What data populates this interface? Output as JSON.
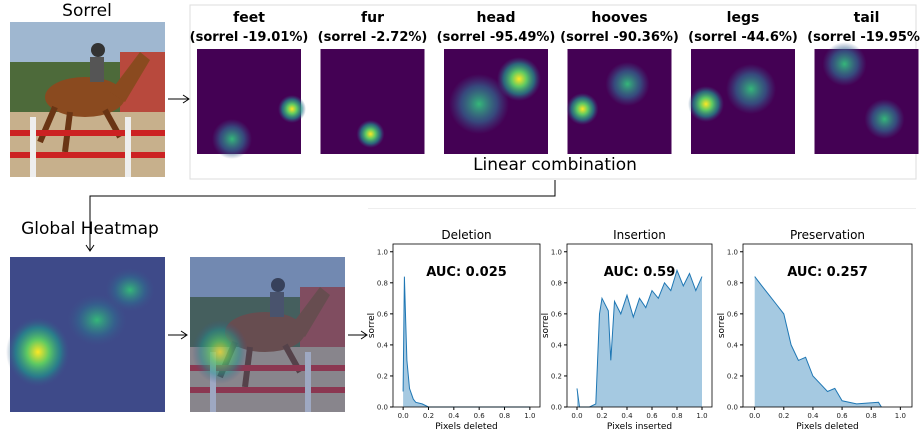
{
  "image_label": "Sorrel",
  "concepts": [
    {
      "name": "feet",
      "score": "(sorrel -19.01%)"
    },
    {
      "name": "fur",
      "score": "(sorrel -2.72%)"
    },
    {
      "name": "head",
      "score": "(sorrel -95.49%)"
    },
    {
      "name": "hooves",
      "score": "(sorrel -90.36%)"
    },
    {
      "name": "legs",
      "score": "(sorrel -44.6%)"
    },
    {
      "name": "tail",
      "score": "(sorrel -19.95%)"
    }
  ],
  "combination_label": "Linear combination",
  "global_label": "Global Heatmap",
  "chart_data": [
    {
      "type": "area",
      "title": "Deletion",
      "annotation": "AUC: 0.025",
      "xlabel": "Pixels deleted",
      "ylabel": "sorrel",
      "color": "#1f77b4",
      "x": [
        0,
        0.01,
        0.02,
        0.03,
        0.05,
        0.08,
        0.1,
        0.15,
        0.2,
        0.3,
        0.5,
        0.7,
        1.0
      ],
      "values": [
        0.1,
        0.84,
        0.55,
        0.3,
        0.12,
        0.05,
        0.03,
        0.02,
        0.0,
        0.0,
        0.0,
        0.0,
        0.0
      ],
      "xlim": [
        -0.08,
        1.08
      ],
      "ylim": [
        0,
        1.05
      ],
      "xticks": [
        {
          "value": 0,
          "label": "0.0"
        },
        {
          "value": 0.2,
          "label": "0.2"
        },
        {
          "value": 0.4,
          "label": "0.4"
        },
        {
          "value": 0.6,
          "label": "0.6"
        },
        {
          "value": 0.8,
          "label": "0.8"
        },
        {
          "value": 1,
          "label": "1.0"
        }
      ],
      "yticks": [
        {
          "value": 0,
          "label": "0.0"
        },
        {
          "value": 0.2,
          "label": "0.2"
        },
        {
          "value": 0.4,
          "label": "0.4"
        },
        {
          "value": 0.6,
          "label": "0.6"
        },
        {
          "value": 0.8,
          "label": "0.8"
        },
        {
          "value": 1,
          "label": "1.0"
        }
      ]
    },
    {
      "type": "area",
      "title": "Insertion",
      "annotation": "AUC: 0.59",
      "xlabel": "Pixels inserted",
      "ylabel": "sorrel",
      "color": "#1f77b4",
      "x": [
        0,
        0.02,
        0.1,
        0.15,
        0.18,
        0.2,
        0.25,
        0.27,
        0.3,
        0.35,
        0.4,
        0.45,
        0.5,
        0.55,
        0.6,
        0.65,
        0.7,
        0.75,
        0.8,
        0.85,
        0.9,
        0.95,
        1.0
      ],
      "values": [
        0.12,
        0.0,
        0.0,
        0.02,
        0.6,
        0.7,
        0.62,
        0.3,
        0.68,
        0.6,
        0.72,
        0.58,
        0.7,
        0.64,
        0.75,
        0.7,
        0.8,
        0.75,
        0.88,
        0.78,
        0.86,
        0.75,
        0.84
      ],
      "xlim": [
        -0.08,
        1.08
      ],
      "ylim": [
        0,
        1.05
      ],
      "xticks": [
        {
          "value": 0,
          "label": "0.0"
        },
        {
          "value": 0.2,
          "label": "0.2"
        },
        {
          "value": 0.4,
          "label": "0.4"
        },
        {
          "value": 0.6,
          "label": "0.6"
        },
        {
          "value": 0.8,
          "label": "0.8"
        },
        {
          "value": 1,
          "label": "1.0"
        }
      ],
      "yticks": [
        {
          "value": 0,
          "label": "0.0"
        },
        {
          "value": 0.2,
          "label": "0.2"
        },
        {
          "value": 0.4,
          "label": "0.4"
        },
        {
          "value": 0.6,
          "label": "0.6"
        },
        {
          "value": 0.8,
          "label": "0.8"
        },
        {
          "value": 1,
          "label": "1.0"
        }
      ]
    },
    {
      "type": "area",
      "title": "Preservation",
      "annotation": "AUC: 0.257",
      "xlabel": "Pixels deleted",
      "ylabel": "sorrel",
      "color": "#1f77b4",
      "x": [
        0,
        0.05,
        0.1,
        0.15,
        0.2,
        0.25,
        0.3,
        0.35,
        0.4,
        0.45,
        0.5,
        0.55,
        0.6,
        0.7,
        0.85,
        0.87
      ],
      "values": [
        0.84,
        0.78,
        0.72,
        0.66,
        0.6,
        0.4,
        0.3,
        0.32,
        0.2,
        0.15,
        0.1,
        0.12,
        0.04,
        0.02,
        0.03,
        0.0
      ],
      "xlim": [
        -0.08,
        1.08
      ],
      "ylim": [
        0,
        1.05
      ],
      "xticks": [
        {
          "value": 0,
          "label": "0.0"
        },
        {
          "value": 0.2,
          "label": "0.2"
        },
        {
          "value": 0.4,
          "label": "0.4"
        },
        {
          "value": 0.6,
          "label": "0.6"
        },
        {
          "value": 0.8,
          "label": "0.8"
        },
        {
          "value": 1,
          "label": "1.0"
        }
      ],
      "yticks": [
        {
          "value": 0,
          "label": "0.0"
        },
        {
          "value": 0.2,
          "label": "0.2"
        },
        {
          "value": 0.4,
          "label": "0.4"
        },
        {
          "value": 0.6,
          "label": "0.6"
        },
        {
          "value": 0.8,
          "label": "0.8"
        },
        {
          "value": 1,
          "label": "1.0"
        }
      ]
    }
  ]
}
